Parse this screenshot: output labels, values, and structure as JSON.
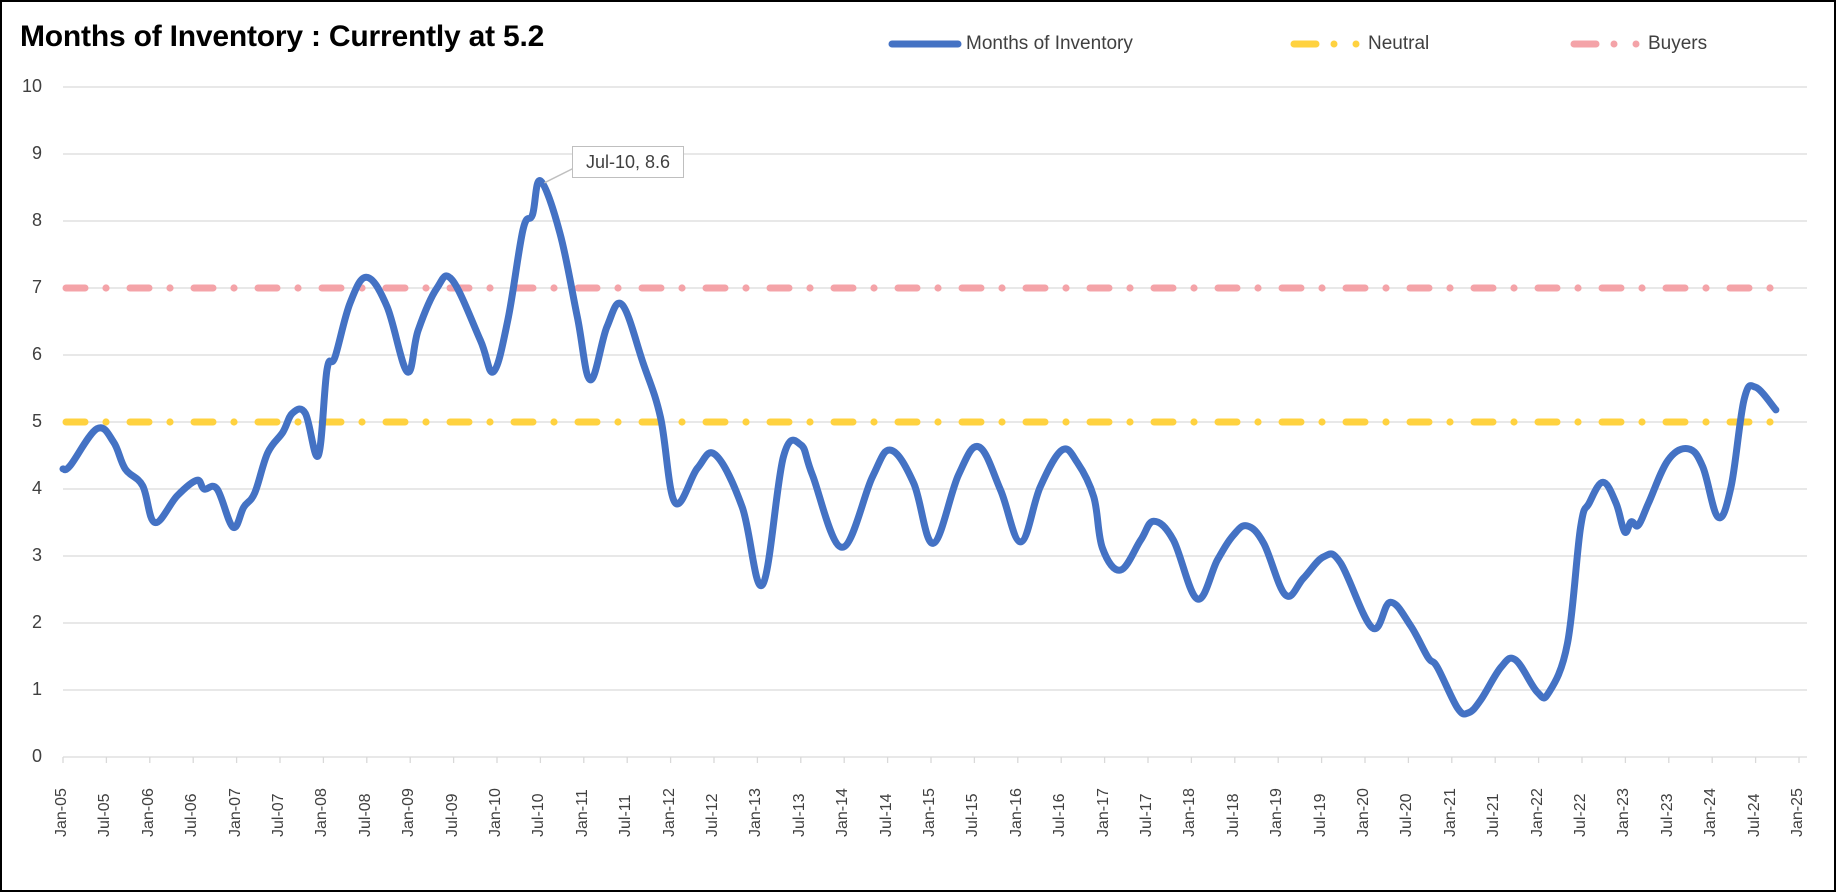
{
  "chart_data": {
    "type": "line",
    "title": "Months of Inventory : Currently at 5.2",
    "xlabel": "",
    "ylabel": "",
    "ylim": [
      0,
      10
    ],
    "yticks": [
      "0",
      "1",
      "2",
      "3",
      "4",
      "5",
      "6",
      "7",
      "8",
      "9",
      "10"
    ],
    "xlim_months_since_jan05": [
      0,
      240
    ],
    "xticks": [
      "Jan-05",
      "Jul-05",
      "Jan-06",
      "Jul-06",
      "Jan-07",
      "Jul-07",
      "Jan-08",
      "Jul-08",
      "Jan-09",
      "Jul-09",
      "Jan-10",
      "Jul-10",
      "Jan-11",
      "Jul-11",
      "Jan-12",
      "Jul-12",
      "Jan-13",
      "Jul-13",
      "Jan-14",
      "Jul-14",
      "Jan-15",
      "Jul-15",
      "Jan-16",
      "Jul-16",
      "Jan-17",
      "Jul-17",
      "Jan-18",
      "Jul-18",
      "Jan-19",
      "Jul-19",
      "Jan-20",
      "Jul-20",
      "Jan-21",
      "Jul-21",
      "Jan-22",
      "Jul-22",
      "Jan-23",
      "Jul-23",
      "Jan-24",
      "Jul-24",
      "Jan-25"
    ],
    "grid": true,
    "legend_position": "top-right",
    "series": [
      {
        "name": "Months of Inventory",
        "color": "#4472C4",
        "style": "solid",
        "x_months_since_jan05": [
          0,
          1,
          4.7,
          7,
          8.6,
          11,
          12.7,
          15.8,
          18.5,
          19.5,
          21.3,
          23.5,
          25,
          26.5,
          28.3,
          30.4,
          31.7,
          33.5,
          35.3,
          36.5,
          37.6,
          39.7,
          42,
          44.8,
          47.6,
          49.1,
          51.7,
          53.8,
          57.7,
          59.5,
          61.5,
          63.6,
          64.9,
          66,
          68.7,
          71.1,
          72.9,
          75.2,
          77.3,
          80.2,
          82.6,
          84.6,
          87.7,
          90.2,
          93.9,
          96.7,
          99.6,
          102,
          103.6,
          107.7,
          111.9,
          114.4,
          117.6,
          120.3,
          123.8,
          126.6,
          129.6,
          132.4,
          135.1,
          138.1,
          140.2,
          142.5,
          143.7,
          146.2,
          149,
          150.8,
          153.5,
          156.8,
          159.6,
          161.8,
          163.7,
          166,
          169,
          171.5,
          174.3,
          176.6,
          181,
          183.5,
          186.3,
          188.7,
          190,
          192.8,
          194.3,
          196,
          198.8,
          200.8,
          203.8,
          205.4,
          208,
          209.8,
          211,
          212.9,
          214.7,
          215.9,
          216.8,
          217.8,
          219.2,
          221.9,
          224.7,
          226.7,
          228.8,
          230.6,
          232.4,
          234,
          236.8
        ],
        "values": [
          4.3,
          4.35,
          4.9,
          4.7,
          4.3,
          4.05,
          3.5,
          3.9,
          4.13,
          4.0,
          4.0,
          3.43,
          3.73,
          3.94,
          4.54,
          4.85,
          5.13,
          5.13,
          4.5,
          5.78,
          5.97,
          6.78,
          7.16,
          6.72,
          5.75,
          6.37,
          7.0,
          7.12,
          6.22,
          5.75,
          6.52,
          7.87,
          8.09,
          8.6,
          7.82,
          6.57,
          5.63,
          6.42,
          6.75,
          5.88,
          5.07,
          3.8,
          4.31,
          4.51,
          3.73,
          2.57,
          4.48,
          4.66,
          4.21,
          3.13,
          4.18,
          4.58,
          4.09,
          3.19,
          4.21,
          4.63,
          3.99,
          3.21,
          4.03,
          4.58,
          4.4,
          3.88,
          3.12,
          2.79,
          3.24,
          3.52,
          3.24,
          2.36,
          2.94,
          3.31,
          3.45,
          3.19,
          2.42,
          2.67,
          2.99,
          2.9,
          1.93,
          2.31,
          1.96,
          1.49,
          1.34,
          0.73,
          0.66,
          0.85,
          1.34,
          1.45,
          0.97,
          0.96,
          1.7,
          3.43,
          3.79,
          4.1,
          3.79,
          3.36,
          3.51,
          3.46,
          3.79,
          4.43,
          4.6,
          4.33,
          3.58,
          4.03,
          5.33,
          5.52,
          5.18
        ]
      },
      {
        "name": "Neutral",
        "color": "#FFD23F",
        "style": "dash-dot",
        "x_months_since_jan05": [
          0,
          237
        ],
        "values": [
          5,
          5
        ]
      },
      {
        "name": "Buyers",
        "color": "#F4A3A8",
        "style": "dash-dot",
        "x_months_since_jan05": [
          0,
          237
        ],
        "values": [
          7,
          7
        ]
      }
    ],
    "annotations": [
      {
        "text": "Jul-10, 8.6",
        "x_months_since_jan05": 66,
        "y": 8.6
      }
    ]
  }
}
